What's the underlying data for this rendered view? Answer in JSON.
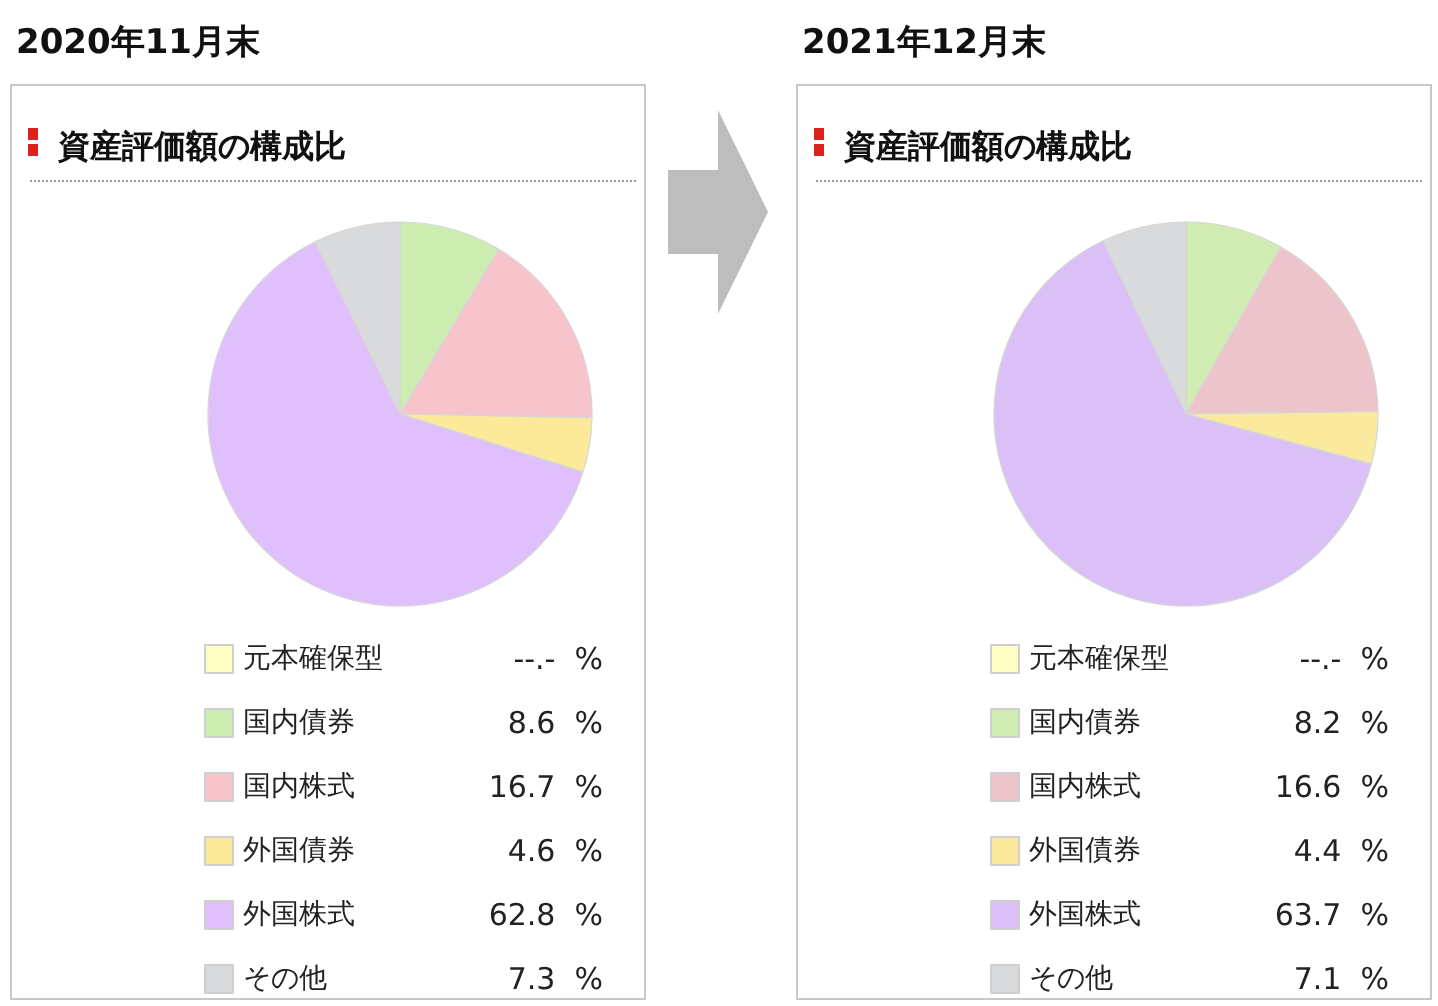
{
  "chart_data": [
    {
      "type": "pie",
      "title": "2020年11月末",
      "subtitle": "資産評価額の構成比",
      "legend": "bottom",
      "categories": [
        "元本確保型",
        "国内債券",
        "国内株式",
        "外国債券",
        "外国株式",
        "その他"
      ],
      "values": [
        null,
        8.6,
        16.7,
        4.6,
        62.8,
        7.3
      ],
      "value_labels": [
        "--.-  %",
        "8.6  %",
        "16.7  %",
        "4.6  %",
        "62.8  %",
        "7.3  %"
      ],
      "colors": [
        "#ffffc4",
        "#cdecb0",
        "#f8c4cc",
        "#fde99a",
        "#dfc0fc",
        "#d9dadc"
      ]
    },
    {
      "type": "pie",
      "title": "2021年12月末",
      "subtitle": "資産評価額の構成比",
      "legend": "bottom",
      "categories": [
        "元本確保型",
        "国内債券",
        "国内株式",
        "外国債券",
        "外国株式",
        "その他"
      ],
      "values": [
        null,
        8.2,
        16.6,
        4.4,
        63.7,
        7.1
      ],
      "value_labels": [
        "--.-  %",
        "8.2  %",
        "16.6  %",
        "4.4  %",
        "63.7  %",
        "7.1  %"
      ],
      "colors": [
        "#ffffc4",
        "#d0ecb2",
        "#eec4cc",
        "#fbe99e",
        "#dbc0f8",
        "#d9dadc"
      ]
    }
  ]
}
